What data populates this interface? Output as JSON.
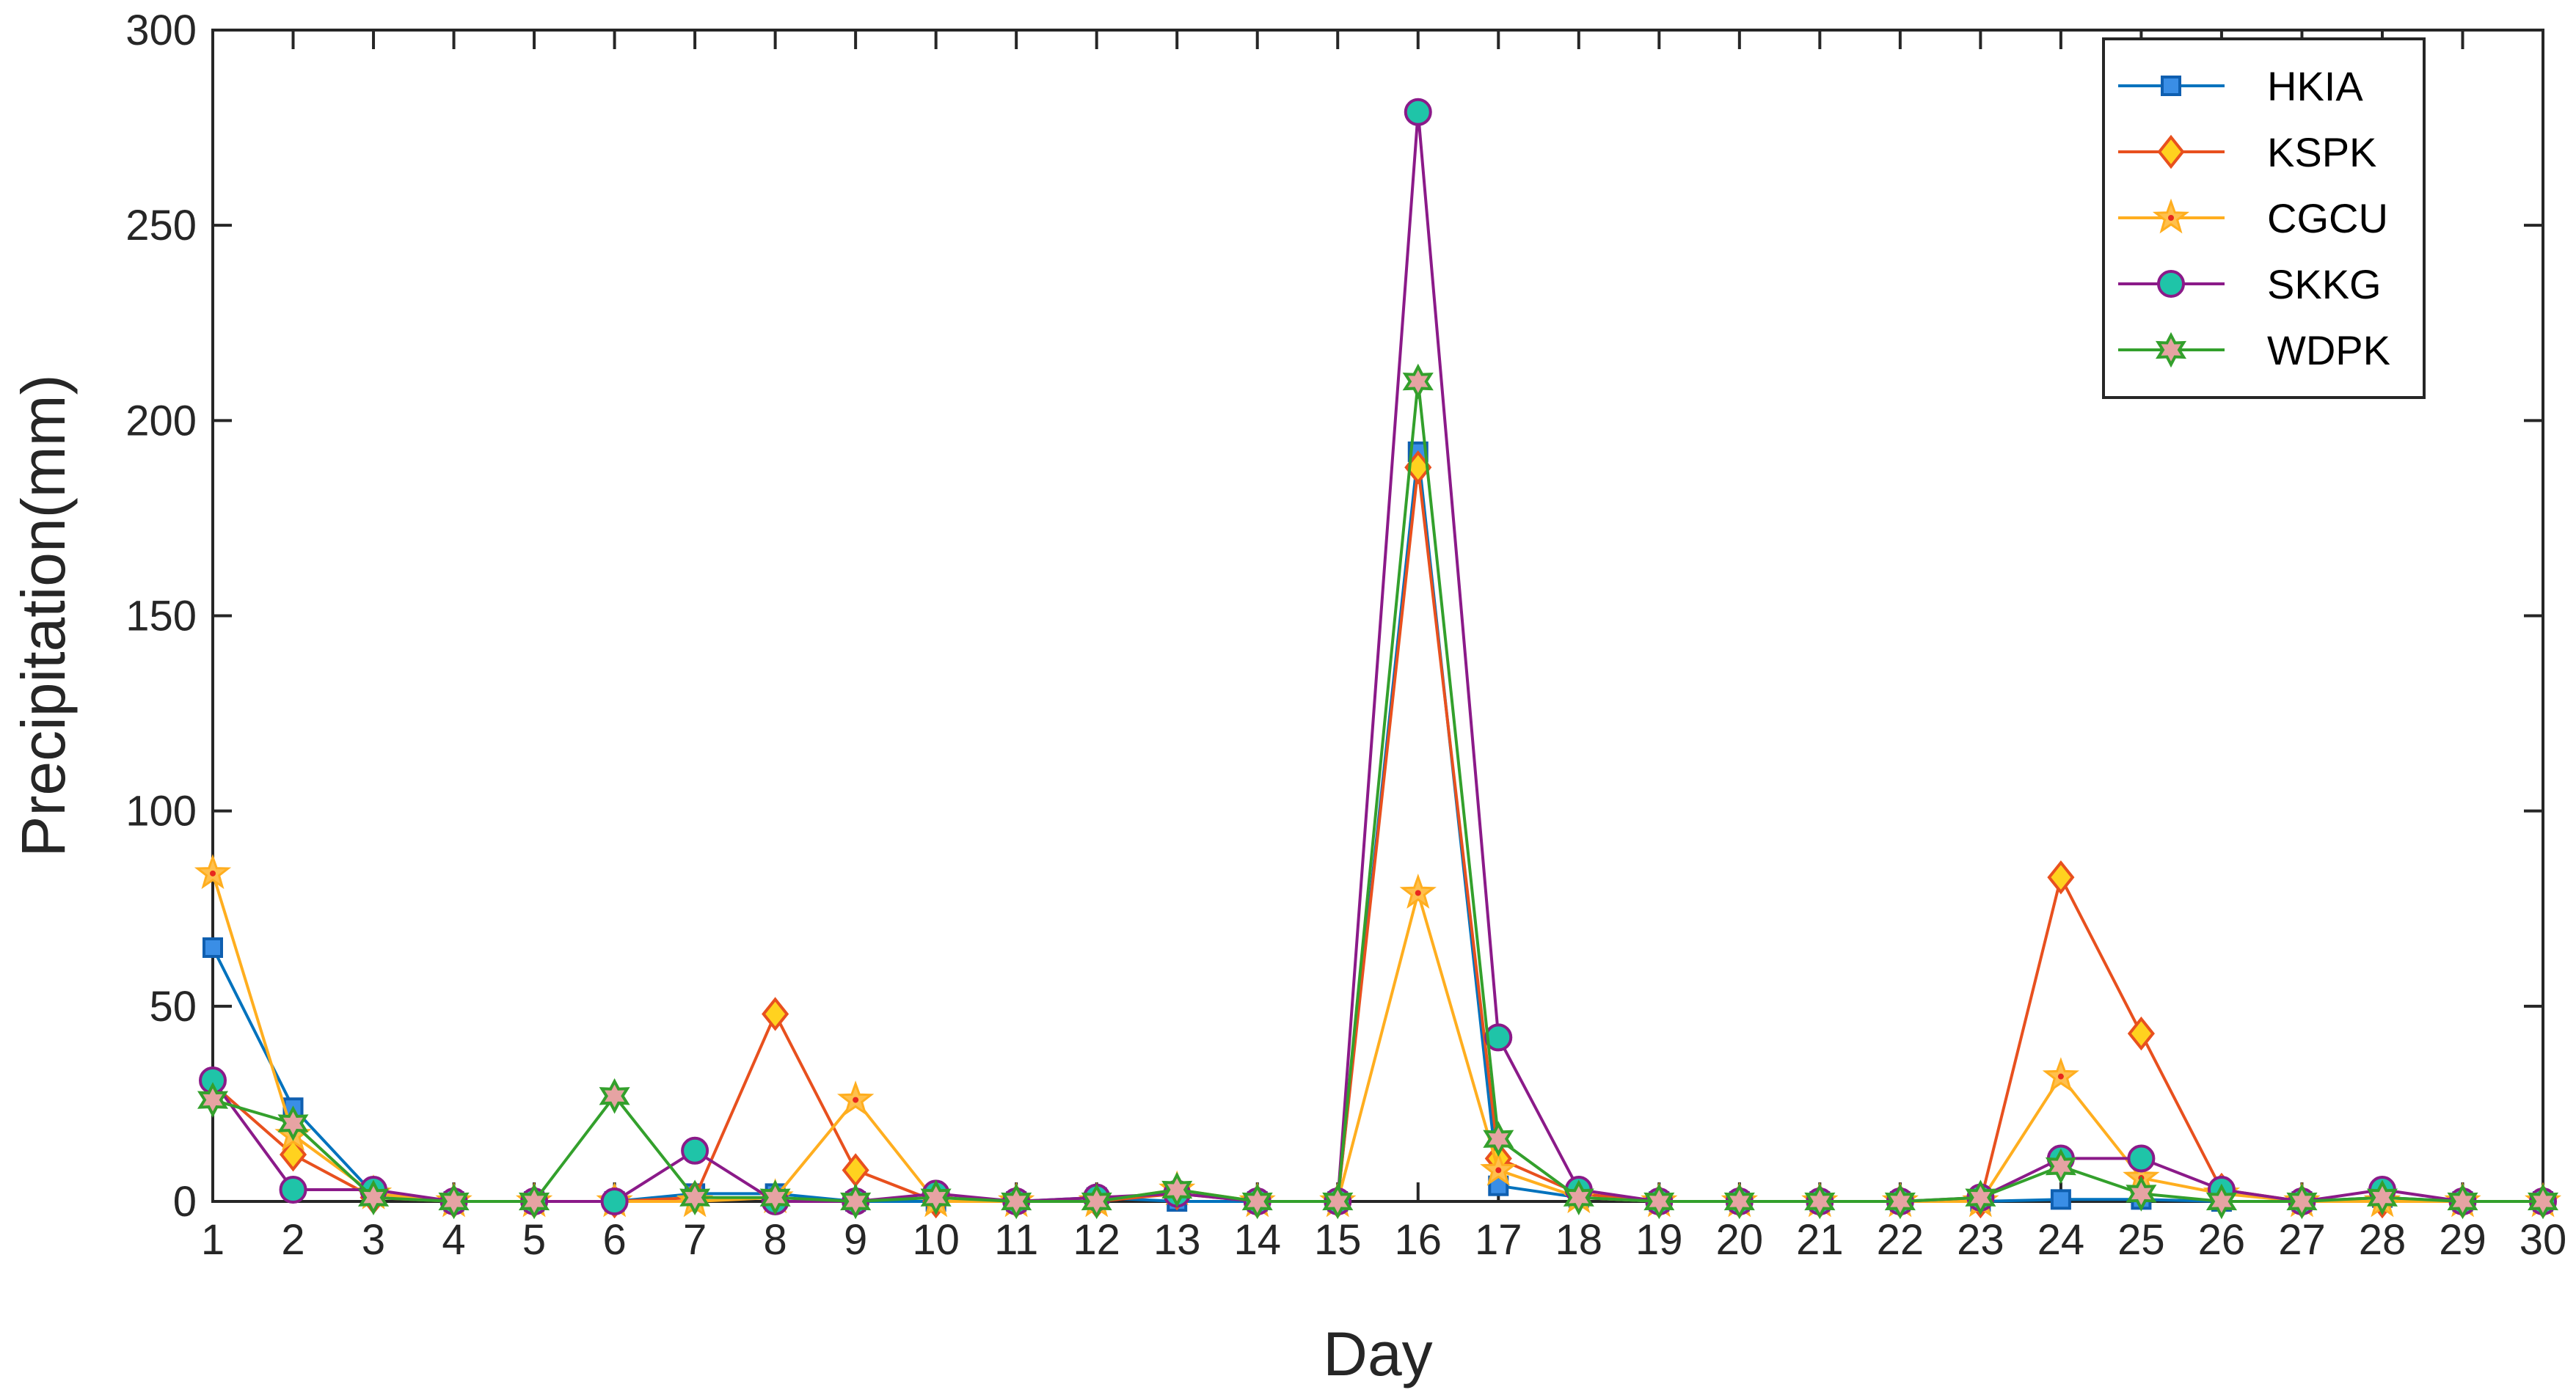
{
  "chart_data": {
    "type": "line",
    "title": "",
    "xlabel": "Day",
    "ylabel": "Precipitation(mm)",
    "xlim": [
      1,
      30
    ],
    "ylim": [
      0,
      300
    ],
    "xticks": [
      1,
      2,
      3,
      4,
      5,
      6,
      7,
      8,
      9,
      10,
      11,
      12,
      13,
      14,
      15,
      16,
      17,
      18,
      19,
      20,
      21,
      22,
      23,
      24,
      25,
      26,
      27,
      28,
      29,
      30
    ],
    "yticks": [
      0,
      50,
      100,
      150,
      200,
      250,
      300
    ],
    "grid": false,
    "legend_position": "top-right",
    "x": [
      1,
      2,
      3,
      4,
      5,
      6,
      7,
      8,
      9,
      10,
      11,
      12,
      13,
      14,
      15,
      16,
      17,
      18,
      19,
      20,
      21,
      22,
      23,
      24,
      25,
      26,
      27,
      28,
      29,
      30
    ],
    "series": [
      {
        "name": "HKIA",
        "marker": "square",
        "line_color": "#0072BD",
        "marker_face": "#3A8EE6",
        "marker_edge": "#0F5FB0",
        "values": [
          65,
          24,
          2,
          0,
          0,
          0,
          2,
          2,
          0,
          0,
          0,
          1,
          0,
          0,
          0,
          192,
          4,
          1,
          0,
          0,
          0,
          0,
          0,
          0.5,
          0.5,
          0,
          0,
          1,
          0,
          0
        ]
      },
      {
        "name": "KSPK",
        "marker": "diamond",
        "line_color": "#E8501E",
        "marker_face": "#FFD21F",
        "marker_edge": "#E8501E",
        "values": [
          30,
          12,
          1,
          0,
          0,
          0,
          1,
          48,
          8,
          0,
          0,
          0,
          2,
          0,
          0,
          188,
          11,
          2,
          0,
          0,
          0,
          0,
          0,
          83,
          43,
          3,
          0,
          0,
          0,
          0
        ]
      },
      {
        "name": "CGCU",
        "marker": "star",
        "line_color": "#FFAE1F",
        "marker_face": "#FFC04D",
        "marker_edge": "#FFAE1F",
        "values": [
          84,
          17,
          2,
          0,
          0,
          0,
          0,
          1,
          26,
          0,
          0,
          0,
          3,
          0,
          0,
          79,
          8,
          1,
          0,
          0,
          0,
          0,
          0,
          32,
          6,
          2,
          0,
          0,
          0,
          0
        ]
      },
      {
        "name": "SKKG",
        "marker": "circle",
        "line_color": "#8B1A89",
        "marker_face": "#1FC4A8",
        "marker_edge": "#8B1A89",
        "values": [
          31,
          3,
          3,
          0,
          0,
          0,
          13,
          0,
          0,
          2,
          0,
          1,
          2,
          0,
          0,
          279,
          42,
          3,
          0,
          0,
          0,
          0,
          1,
          11,
          11,
          3,
          0,
          3,
          0,
          0
        ]
      },
      {
        "name": "WDPK",
        "marker": "hexagram",
        "line_color": "#33A02C",
        "marker_face": "#E6A3A3",
        "marker_edge": "#33A02C",
        "values": [
          26,
          20,
          1,
          0,
          0,
          27,
          1,
          1,
          0,
          1,
          0,
          0,
          3,
          0,
          0,
          210,
          16,
          1,
          0,
          0,
          0,
          0,
          1,
          9,
          2,
          0,
          0,
          1,
          0,
          0
        ]
      }
    ]
  }
}
